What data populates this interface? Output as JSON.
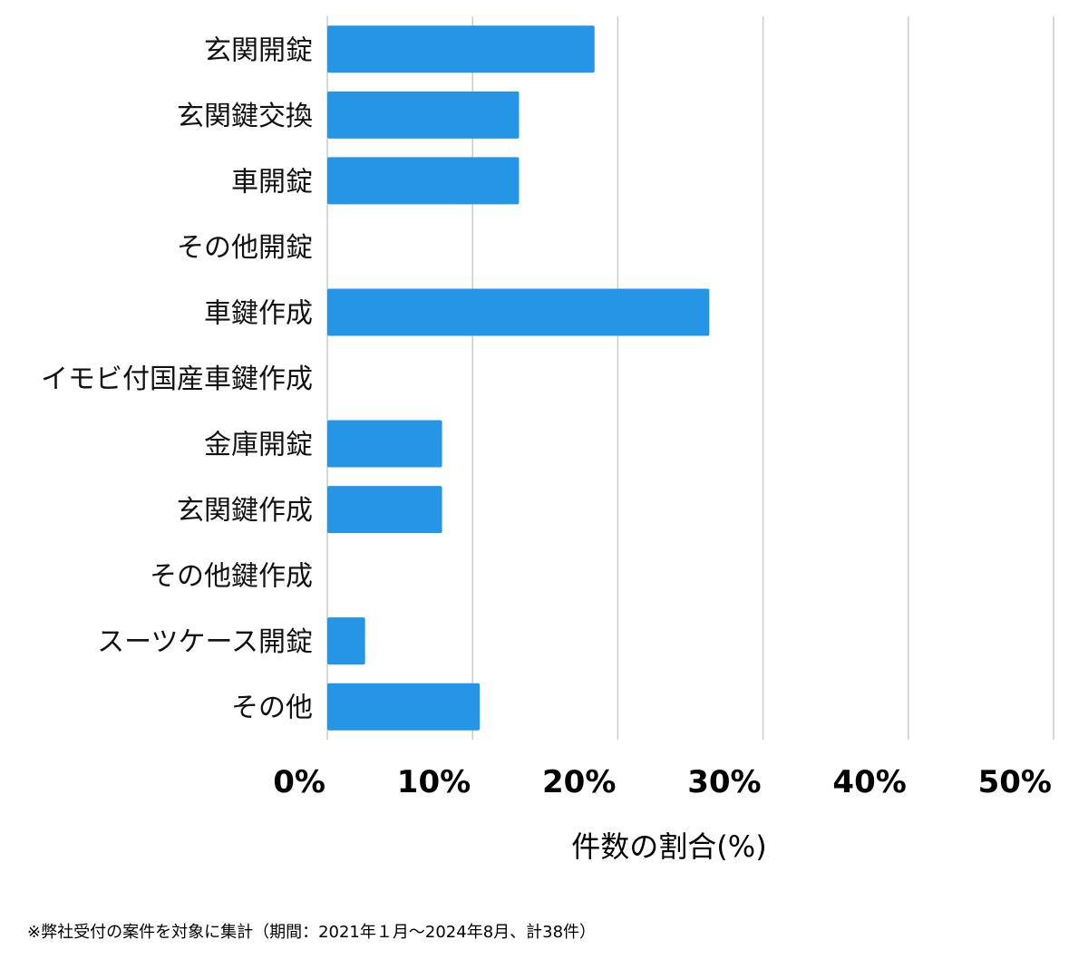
{
  "chart_data": {
    "type": "bar",
    "orientation": "horizontal",
    "categories": [
      "玄関開錠",
      "玄関鍵交換",
      "車開錠",
      "その他開錠",
      "車鍵作成",
      "イモビ付国産車鍵作成",
      "金庫開錠",
      "玄関鍵作成",
      "その他鍵作成",
      "スーツケース開錠",
      "その他"
    ],
    "values": [
      18.4,
      13.2,
      13.2,
      0,
      26.3,
      0,
      7.9,
      7.9,
      0,
      2.6,
      10.5
    ],
    "xlabel": "件数の割合(%)",
    "xlim": [
      0,
      50
    ],
    "xticks": [
      "0%",
      "10%",
      "20%",
      "30%",
      "40%",
      "50%"
    ],
    "grid": true,
    "bar_color": "#2596e6",
    "grid_color": "#cccccc"
  },
  "footnote": "※弊社受付の案件を対象に集計（期間：2021年１月〜2024年8月、計38件）"
}
